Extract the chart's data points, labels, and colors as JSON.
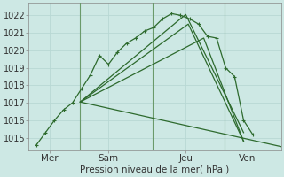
{
  "background_color": "#cde8e4",
  "grid_color": "#b0d4cf",
  "line_color": "#2d6a2d",
  "sep_color": "#7aaa7a",
  "xlabel": "Pression niveau de la mer( hPa )",
  "ylim": [
    1014.3,
    1022.7
  ],
  "xlim": [
    -0.3,
    9.5
  ],
  "yticks": [
    1015,
    1016,
    1017,
    1018,
    1019,
    1020,
    1021,
    1022
  ],
  "xtick_labels": [
    "Mer",
    "Sam",
    "Jeu",
    "Ven"
  ],
  "xtick_positions": [
    0.5,
    2.8,
    5.8,
    8.2
  ],
  "vline_positions": [
    1.7,
    4.5,
    7.3
  ],
  "main_line": {
    "x": [
      0.0,
      0.35,
      0.7,
      1.05,
      1.4,
      1.75,
      2.1,
      2.45,
      2.8,
      3.15,
      3.5,
      3.85,
      4.2,
      4.55,
      4.9,
      5.25,
      5.6,
      5.95,
      6.3,
      6.65,
      7.0,
      7.35,
      7.7,
      8.05,
      8.4
    ],
    "y": [
      1014.6,
      1015.3,
      1016.0,
      1016.6,
      1017.0,
      1017.8,
      1018.6,
      1019.7,
      1019.2,
      1019.9,
      1020.4,
      1020.7,
      1021.1,
      1021.3,
      1021.8,
      1022.1,
      1022.0,
      1021.8,
      1021.5,
      1020.8,
      1020.7,
      1019.0,
      1018.5,
      1016.0,
      1015.2
    ]
  },
  "fan_lines": [
    {
      "x": [
        1.7,
        5.8,
        8.05
      ],
      "y": [
        1017.05,
        1022.05,
        1015.3
      ]
    },
    {
      "x": [
        1.7,
        5.9,
        8.05
      ],
      "y": [
        1017.05,
        1021.5,
        1014.8
      ]
    },
    {
      "x": [
        1.7,
        6.5,
        8.05
      ],
      "y": [
        1017.05,
        1020.7,
        1014.8
      ]
    },
    {
      "x": [
        1.7,
        9.5
      ],
      "y": [
        1017.05,
        1014.5
      ]
    }
  ]
}
